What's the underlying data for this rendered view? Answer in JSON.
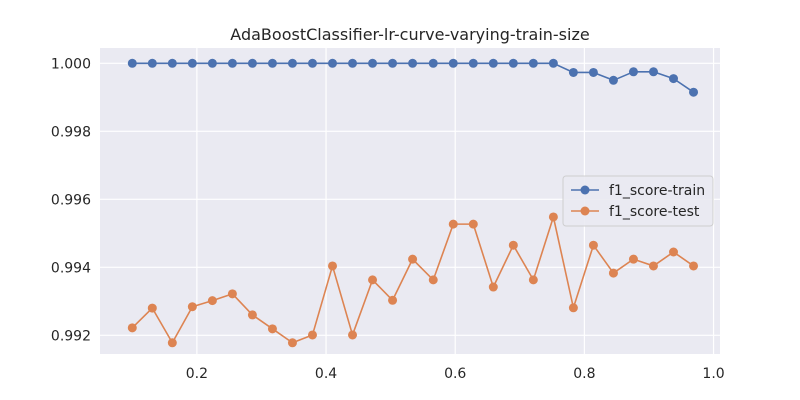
{
  "chart_data": {
    "type": "line",
    "title": "AdaBoostClassifier-lr-curve-varying-train-size",
    "xlabel": "",
    "ylabel": "",
    "xlim": [
      0.05,
      1.01
    ],
    "ylim": [
      0.99145,
      1.00045
    ],
    "x_ticks": [
      0.2,
      0.4,
      0.6,
      0.8,
      1.0
    ],
    "x_tick_labels": [
      "0.2",
      "0.4",
      "0.6",
      "0.8",
      "1.0"
    ],
    "y_ticks": [
      0.992,
      0.994,
      0.996,
      0.998,
      1.0
    ],
    "y_tick_labels": [
      "0.992",
      "0.994",
      "0.996",
      "0.998",
      "1.000"
    ],
    "grid": true,
    "legend_position": "center-right",
    "x": [
      0.1,
      0.131,
      0.162,
      0.193,
      0.224,
      0.255,
      0.286,
      0.317,
      0.348,
      0.379,
      0.41,
      0.441,
      0.472,
      0.503,
      0.534,
      0.566,
      0.597,
      0.628,
      0.659,
      0.69,
      0.721,
      0.752,
      0.783,
      0.814,
      0.845,
      0.876,
      0.907,
      0.938,
      0.969
    ],
    "series": [
      {
        "name": "f1_score-train",
        "color": "#4c72b0",
        "values": [
          1.0,
          1.0,
          1.0,
          1.0,
          1.0,
          1.0,
          1.0,
          1.0,
          1.0,
          1.0,
          1.0,
          1.0,
          1.0,
          1.0,
          1.0,
          1.0,
          1.0,
          1.0,
          1.0,
          1.0,
          1.0,
          1.0,
          0.99973,
          0.99973,
          0.9995,
          0.99975,
          0.99975,
          0.99955,
          0.99915
        ]
      },
      {
        "name": "f1_score-test",
        "color": "#dd8452",
        "values": [
          0.99222,
          0.9928,
          0.99178,
          0.99284,
          0.99302,
          0.99322,
          0.9926,
          0.99219,
          0.99178,
          0.99201,
          0.99404,
          0.99201,
          0.99363,
          0.99303,
          0.99424,
          0.99363,
          0.99527,
          0.99527,
          0.99342,
          0.99465,
          0.99363,
          0.99548,
          0.99281,
          0.99465,
          0.99383,
          0.99424,
          0.99404,
          0.99445,
          0.99404
        ]
      }
    ]
  }
}
